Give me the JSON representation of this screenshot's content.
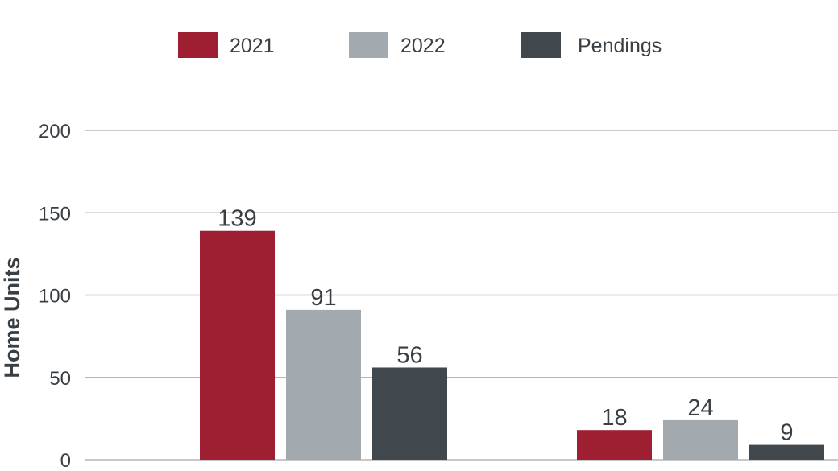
{
  "chart_data": {
    "type": "bar",
    "title": "",
    "xlabel": "",
    "ylabel": "Home Units",
    "ylim": [
      0,
      200
    ],
    "yticks": [
      0,
      50,
      100,
      150,
      200
    ],
    "grid": true,
    "legend_placement": "top",
    "categories": [
      "",
      ""
    ],
    "series": [
      {
        "name": "2021",
        "color": "#9e1f32",
        "values": [
          139,
          18
        ]
      },
      {
        "name": "2022",
        "color": "#a2aab0",
        "values": [
          91,
          24
        ]
      },
      {
        "name": "Pendings",
        "color": "#40474d",
        "values": [
          56,
          9
        ]
      }
    ]
  }
}
